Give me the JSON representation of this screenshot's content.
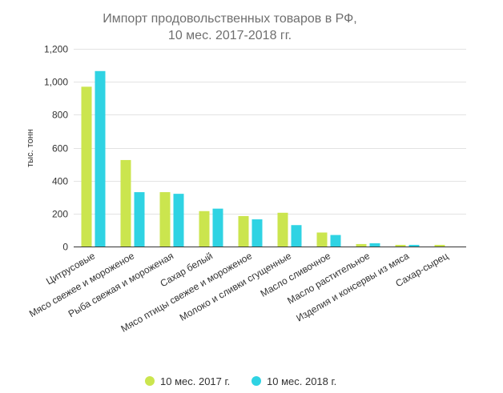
{
  "chart_data": {
    "type": "bar",
    "title": "Импорт продовольственных товаров в РФ,",
    "subtitle": "10 мес. 2017-2018 гг.",
    "ylabel": "тыс. тонн",
    "xlabel": "",
    "ylim": [
      0,
      1200
    ],
    "yticks": [
      0,
      200,
      400,
      600,
      800,
      1000,
      1200
    ],
    "ytick_labels": [
      "0",
      "200",
      "400",
      "600",
      "800",
      "1,000",
      "1,200"
    ],
    "grid": true,
    "legend_position": "bottom-center",
    "categories": [
      "Цитрусовые",
      "Мясо свежее и мороженое",
      "Рыба свежая и мороженая",
      "Сахар белый",
      "Мясо птицы свежее и мороженое",
      "Молоко и сливки сгущенные",
      "Масло сливочное",
      "Масло растительное",
      "Изделия и консервы из мяса",
      "Сахар-сырец"
    ],
    "series": [
      {
        "name": "10 мес. 2017 г.",
        "color": "#cbe54e",
        "values": [
          970,
          525,
          330,
          215,
          185,
          205,
          85,
          15,
          10,
          10
        ]
      },
      {
        "name": "10 мес. 2018 г.",
        "color": "#2fd3e3",
        "values": [
          1065,
          330,
          320,
          230,
          165,
          130,
          70,
          20,
          10,
          0
        ]
      }
    ]
  }
}
